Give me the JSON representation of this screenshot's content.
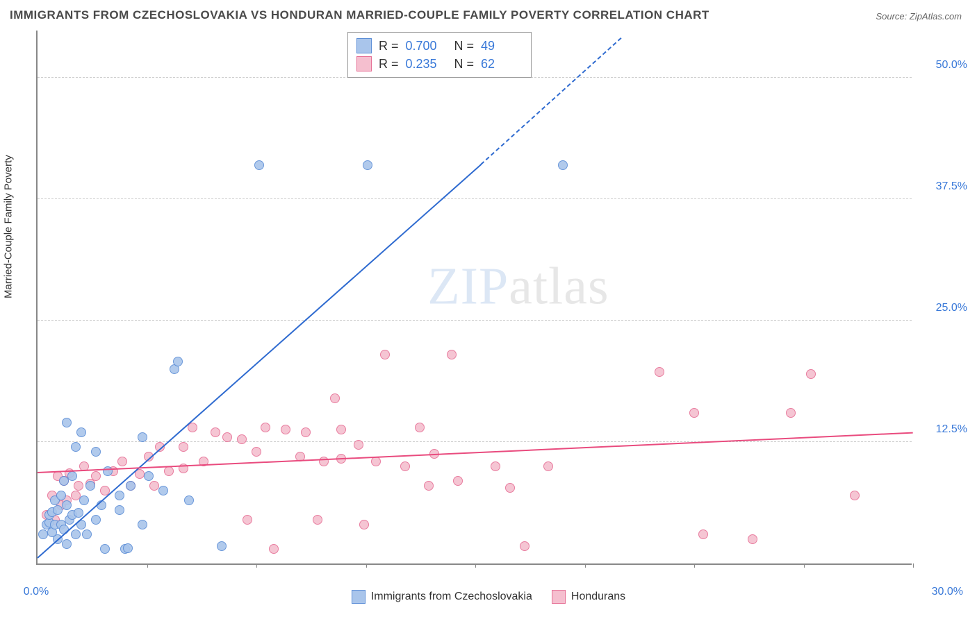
{
  "title": "IMMIGRANTS FROM CZECHOSLOVAKIA VS HONDURAN MARRIED-COUPLE FAMILY POVERTY CORRELATION CHART",
  "source": "Source: ZipAtlas.com",
  "ylabel": "Married-Couple Family Poverty",
  "watermark": {
    "part1": "ZIP",
    "part2": "atlas"
  },
  "chart": {
    "type": "scatter",
    "background_color": "#ffffff",
    "grid_color": "#cccccc",
    "axis_color": "#888888",
    "xlim": [
      0,
      30
    ],
    "ylim": [
      0,
      55
    ],
    "y_gridlines": [
      12.5,
      25.0,
      37.5,
      50.0
    ],
    "y_tick_labels": [
      "12.5%",
      "25.0%",
      "37.5%",
      "50.0%"
    ],
    "x_tick_labels": {
      "start": "0.0%",
      "end": "30.0%"
    },
    "x_minor_ticks": [
      3.75,
      7.5,
      11.25,
      15,
      18.75,
      22.5,
      26.25,
      30
    ],
    "marker_radius": 7,
    "marker_stroke_width": 1.5,
    "marker_fill_opacity": 0.25,
    "label_fontsize": 15,
    "tick_fontsize": 16,
    "title_fontsize": 17,
    "series": [
      {
        "name": "Immigrants from Czechoslovakia",
        "color": "#5b8dd6",
        "fill": "#a9c5eb",
        "stroke": "#5b8dd6",
        "R": "0.700",
        "N": "49",
        "trend": {
          "x0": 0,
          "y0": 0.5,
          "x1": 15.2,
          "y1": 41.0,
          "dash_x1": 20,
          "dash_y1": 54,
          "color": "#2f6bd0",
          "width": 2
        },
        "points": [
          [
            0.2,
            3.0
          ],
          [
            0.3,
            4.0
          ],
          [
            0.4,
            4.2
          ],
          [
            0.4,
            5.0
          ],
          [
            0.5,
            3.2
          ],
          [
            0.5,
            5.3
          ],
          [
            0.6,
            4.0
          ],
          [
            0.6,
            6.5
          ],
          [
            0.7,
            2.5
          ],
          [
            0.7,
            5.5
          ],
          [
            0.8,
            4.0
          ],
          [
            0.8,
            7.0
          ],
          [
            0.9,
            3.5
          ],
          [
            0.9,
            8.5
          ],
          [
            1.0,
            2.0
          ],
          [
            1.0,
            6.0
          ],
          [
            1.0,
            14.5
          ],
          [
            1.1,
            4.5
          ],
          [
            1.2,
            5.0
          ],
          [
            1.2,
            9.0
          ],
          [
            1.3,
            3.0
          ],
          [
            1.3,
            12.0
          ],
          [
            1.4,
            5.2
          ],
          [
            1.5,
            4.0
          ],
          [
            1.5,
            13.5
          ],
          [
            1.6,
            6.5
          ],
          [
            1.7,
            3.0
          ],
          [
            1.8,
            8.0
          ],
          [
            2.0,
            4.5
          ],
          [
            2.0,
            11.5
          ],
          [
            2.2,
            6.0
          ],
          [
            2.3,
            1.5
          ],
          [
            2.4,
            9.5
          ],
          [
            2.8,
            5.5
          ],
          [
            2.8,
            7.0
          ],
          [
            3.0,
            1.5
          ],
          [
            3.2,
            8.0
          ],
          [
            3.6,
            4.0
          ],
          [
            3.6,
            13.0
          ],
          [
            3.8,
            9.0
          ],
          [
            4.3,
            7.5
          ],
          [
            4.7,
            20.0
          ],
          [
            4.8,
            20.8
          ],
          [
            5.2,
            6.5
          ],
          [
            6.3,
            1.8
          ],
          [
            7.6,
            41.0
          ],
          [
            11.3,
            41.0
          ],
          [
            18.0,
            41.0
          ],
          [
            3.1,
            1.6
          ]
        ]
      },
      {
        "name": "Hondurans",
        "color": "#e66f95",
        "fill": "#f5bfcf",
        "stroke": "#e66f95",
        "R": "0.235",
        "N": "62",
        "trend": {
          "x0": 0,
          "y0": 9.3,
          "x1": 30,
          "y1": 13.4,
          "color": "#e94b7e",
          "width": 2
        },
        "points": [
          [
            0.3,
            5.0
          ],
          [
            0.5,
            7.0
          ],
          [
            0.6,
            4.5
          ],
          [
            0.7,
            9.0
          ],
          [
            0.8,
            6.0
          ],
          [
            0.9,
            8.5
          ],
          [
            1.0,
            6.5
          ],
          [
            1.1,
            9.3
          ],
          [
            1.3,
            7.0
          ],
          [
            1.4,
            8.0
          ],
          [
            1.6,
            10.0
          ],
          [
            1.8,
            8.2
          ],
          [
            2.0,
            9.0
          ],
          [
            2.3,
            7.5
          ],
          [
            2.6,
            9.5
          ],
          [
            2.9,
            10.5
          ],
          [
            3.2,
            8.0
          ],
          [
            3.5,
            9.2
          ],
          [
            3.8,
            11.0
          ],
          [
            4.0,
            8.0
          ],
          [
            4.2,
            12.0
          ],
          [
            4.5,
            9.5
          ],
          [
            5.0,
            12.0
          ],
          [
            5.3,
            14.0
          ],
          [
            5.7,
            10.5
          ],
          [
            6.1,
            13.5
          ],
          [
            7.0,
            12.8
          ],
          [
            7.5,
            11.5
          ],
          [
            7.2,
            4.5
          ],
          [
            7.8,
            14.0
          ],
          [
            8.1,
            1.5
          ],
          [
            8.5,
            13.8
          ],
          [
            9.0,
            11.0
          ],
          [
            9.2,
            13.5
          ],
          [
            9.6,
            4.5
          ],
          [
            9.8,
            10.5
          ],
          [
            10.2,
            17.0
          ],
          [
            10.4,
            13.8
          ],
          [
            10.4,
            10.8
          ],
          [
            11.0,
            12.2
          ],
          [
            11.2,
            4.0
          ],
          [
            11.6,
            10.5
          ],
          [
            11.9,
            21.5
          ],
          [
            12.6,
            10.0
          ],
          [
            13.1,
            14.0
          ],
          [
            13.4,
            8.0
          ],
          [
            13.6,
            11.3
          ],
          [
            14.2,
            21.5
          ],
          [
            14.4,
            8.5
          ],
          [
            15.7,
            10.0
          ],
          [
            16.2,
            7.8
          ],
          [
            16.7,
            1.8
          ],
          [
            17.5,
            10.0
          ],
          [
            21.3,
            19.7
          ],
          [
            22.5,
            15.5
          ],
          [
            22.8,
            3.0
          ],
          [
            25.8,
            15.5
          ],
          [
            26.5,
            19.5
          ],
          [
            28.0,
            7.0
          ],
          [
            24.5,
            2.5
          ],
          [
            6.5,
            13.0
          ],
          [
            5.0,
            9.8
          ]
        ]
      }
    ]
  },
  "legend_top": {
    "rows": [
      {
        "swatch_fill": "#a9c5eb",
        "swatch_border": "#5b8dd6",
        "r_label": "R =",
        "r_val": "0.700",
        "n_label": "N =",
        "n_val": "49"
      },
      {
        "swatch_fill": "#f5bfcf",
        "swatch_border": "#e66f95",
        "r_label": "R =",
        "r_val": "0.235",
        "n_label": "N =",
        "n_val": "62"
      }
    ]
  },
  "legend_bottom": {
    "items": [
      {
        "swatch_fill": "#a9c5eb",
        "swatch_border": "#5b8dd6",
        "label": "Immigrants from Czechoslovakia"
      },
      {
        "swatch_fill": "#f5bfcf",
        "swatch_border": "#e66f95",
        "label": "Hondurans"
      }
    ]
  }
}
